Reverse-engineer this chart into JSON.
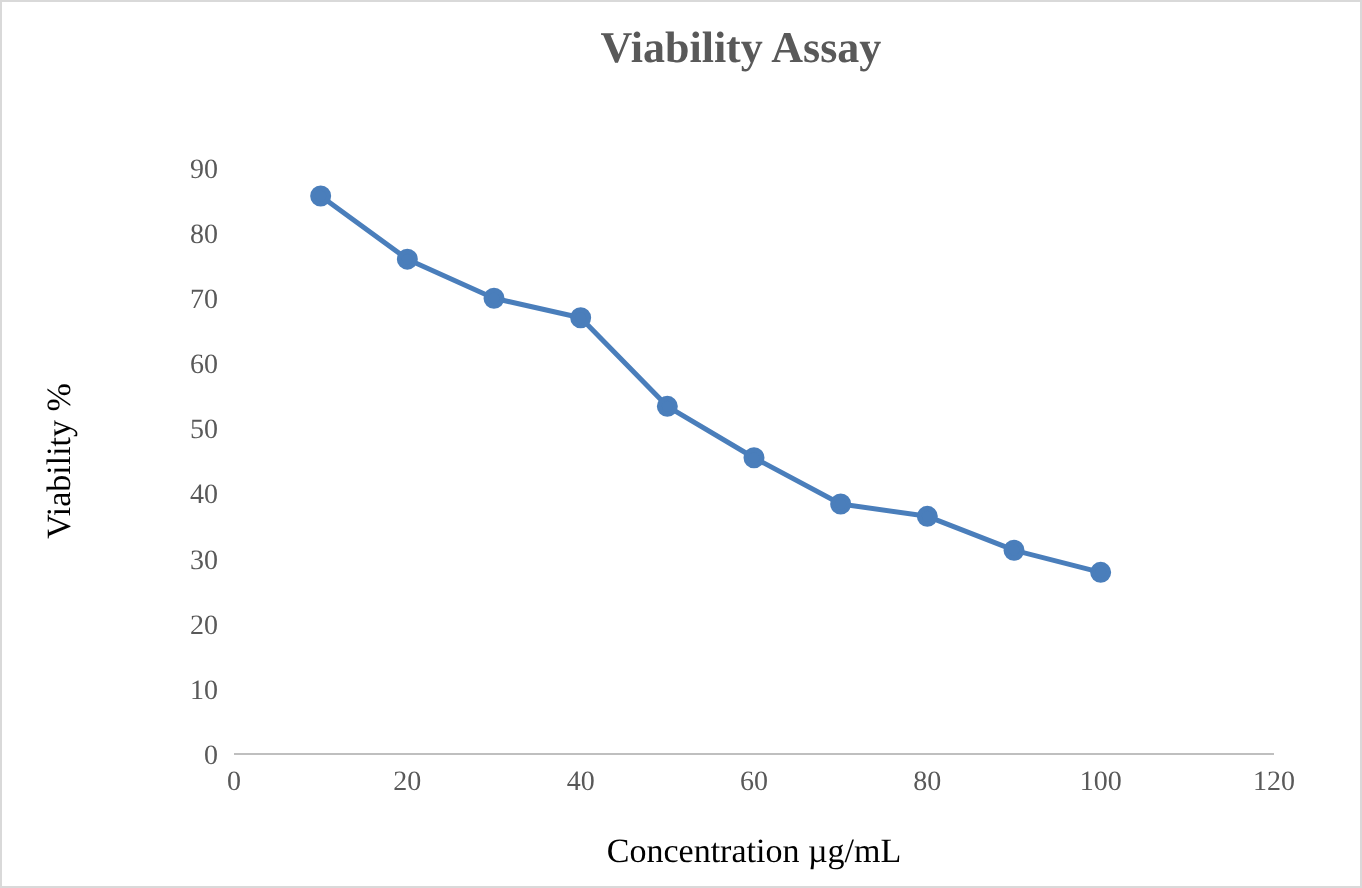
{
  "chart_data": {
    "type": "line",
    "title": "Viability Assay",
    "xlabel": "Concentration µg/mL",
    "ylabel": "Viability %",
    "x": [
      10,
      20,
      30,
      40,
      50,
      60,
      70,
      80,
      90,
      100
    ],
    "series": [
      {
        "color": "#4a7ebb",
        "values": [
          85.7,
          76,
          70,
          67,
          53.4,
          45.5,
          38.4,
          36.5,
          31.3,
          27.9
        ]
      }
    ],
    "xlim": [
      0,
      120
    ],
    "xticks": [
      0,
      20,
      40,
      60,
      80,
      100,
      120
    ],
    "ylim": [
      0,
      90
    ],
    "yticks": [
      0,
      10,
      20,
      30,
      40,
      50,
      60,
      70,
      80,
      90
    ],
    "grid": false,
    "legend": false,
    "marker": "circle",
    "line_style": "solid"
  }
}
